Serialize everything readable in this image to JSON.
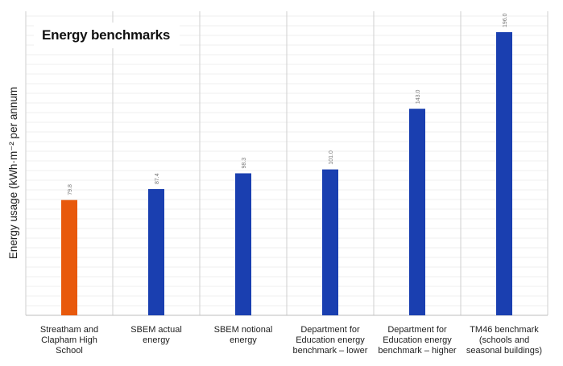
{
  "chart_data": {
    "type": "bar",
    "title": "Energy benchmarks",
    "xlabel": "",
    "ylabel": "Energy usage (kWh·m⁻² per annum",
    "ylim": [
      0,
      196
    ],
    "grid": true,
    "categories": [
      "Streatham and\nClapham High School",
      "SBEM actual\nenergy",
      "SBEM notional\nenergy",
      "Department for\nEducation energy\nbenchmark – lower",
      "Department for\nEducation energy\nbenchmark – higher",
      "TM46 benchmark\n(schools and\nseasonal buildings)"
    ],
    "values": [
      79.8,
      87.4,
      98.3,
      101.0,
      143.0,
      196.0
    ],
    "value_labels": [
      "79.8",
      "87.4",
      "98.3",
      "101.0",
      "143.0",
      "196.0"
    ],
    "colors": [
      "#E8590C",
      "#1A3FB0",
      "#1A3FB0",
      "#1A3FB0",
      "#1A3FB0",
      "#1A3FB0"
    ]
  }
}
